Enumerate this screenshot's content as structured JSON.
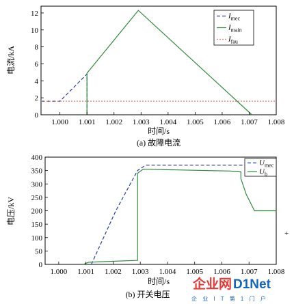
{
  "chart_data": [
    {
      "type": "line",
      "caption": "(a) 故障电流",
      "xlabel": "时间/s",
      "ylabel": "电流/kA",
      "xlim": [
        0.9993,
        1.008
      ],
      "ylim": [
        0,
        12.8
      ],
      "x_ticks": [
        1.0,
        1.001,
        1.002,
        1.003,
        1.004,
        1.005,
        1.006,
        1.007,
        1.008
      ],
      "x_tick_labels": [
        "1.000",
        "1.001",
        "1.002",
        "1.003",
        "1.004",
        "1.005",
        "1.006",
        "1.007",
        "1.008"
      ],
      "y_ticks": [
        0,
        2,
        4,
        6,
        8,
        10,
        12
      ],
      "legend": {
        "position": "top-right"
      },
      "series": [
        {
          "name_main": "I",
          "name_sub": "mec",
          "color": "#2b3aa6",
          "dash": "5,3",
          "x": [
            0.9993,
            1.0,
            1.001,
            1.001
          ],
          "y": [
            1.6,
            1.6,
            4.8,
            0
          ]
        },
        {
          "name_main": "I",
          "name_sub": "main",
          "color": "#2f8a3c",
          "dash": "",
          "x": [
            1.001,
            1.001,
            1.001,
            1.0029,
            1.0071
          ],
          "y": [
            0,
            1.5,
            4.9,
            12.3,
            0
          ]
        },
        {
          "name_main": "I",
          "name_sub": "fau",
          "color": "#e07b6e",
          "dash": "2,2",
          "x": [
            0.9993,
            1.008
          ],
          "y": [
            1.6,
            1.6
          ]
        }
      ]
    },
    {
      "type": "line",
      "caption": "(b) 开关电压",
      "xlabel": "时间/s",
      "ylabel": "电压/kV",
      "xlim": [
        0.9995,
        1.008
      ],
      "ylim": [
        0,
        400
      ],
      "x_ticks": [
        1.0,
        1.001,
        1.002,
        1.003,
        1.004,
        1.005,
        1.006,
        1.007,
        1.008
      ],
      "x_tick_labels": [
        "1.000",
        "1.001",
        "1.002",
        "1.003",
        "1.004",
        "1.005",
        "1.006",
        "1.007",
        "1.008"
      ],
      "y_ticks": [
        0,
        50,
        100,
        150,
        200,
        250,
        300,
        350,
        400
      ],
      "legend": {
        "position": "top-right"
      },
      "series": [
        {
          "name_main": "U",
          "name_sub": "mec",
          "color": "#2b3aa6",
          "dash": "5,3",
          "x": [
            1.0012,
            1.0021,
            1.0029,
            1.0032,
            1.0055,
            1.0075
          ],
          "y": [
            0,
            200,
            350,
            370,
            370,
            370
          ]
        },
        {
          "name_main": "U",
          "name_sub": "b",
          "color": "#2f8a3c",
          "dash": "",
          "x": [
            1.0009,
            1.0011,
            1.0029,
            1.0029,
            1.0031,
            1.0045,
            1.0063,
            1.0067,
            1.0067,
            1.0069,
            1.0072,
            1.008
          ],
          "y": [
            0,
            8,
            15,
            340,
            355,
            352,
            348,
            345,
            320,
            260,
            200,
            200
          ]
        }
      ]
    }
  ],
  "watermark": {
    "line1_part_a": "企业网",
    "line1_part_b": "D1Net",
    "line2": "企 业 I T 第 1 门 户"
  },
  "margin_mark": "+"
}
